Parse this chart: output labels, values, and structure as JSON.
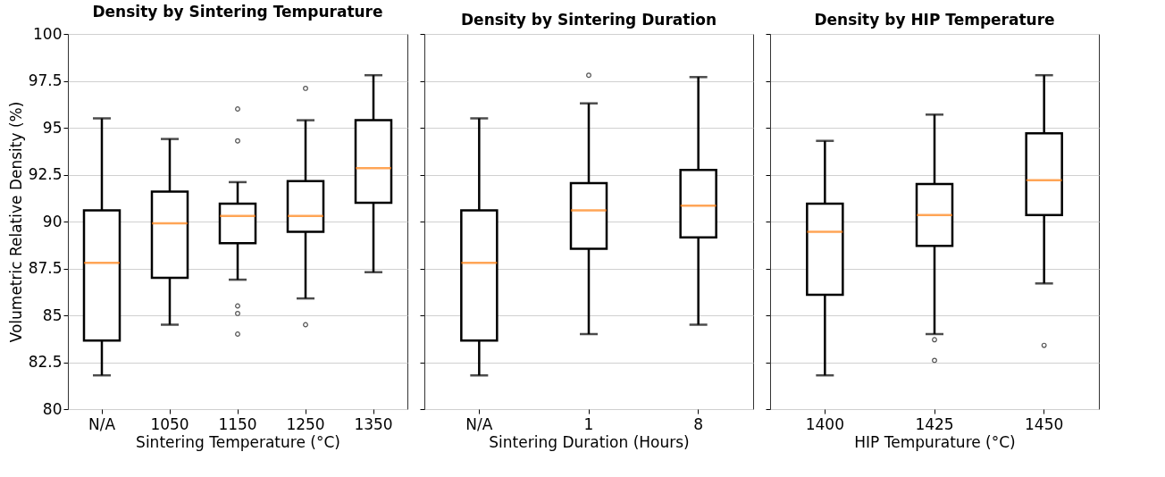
{
  "chart_data": [
    {
      "type": "box",
      "title": "Density by Sintering Tempurature",
      "xlabel": "Sintering Temperature (°C)",
      "ylabel": "Volumetric Relative Density (%)",
      "categories": [
        "N/A",
        "1050",
        "1150",
        "1250",
        "1350"
      ],
      "boxes": [
        {
          "low": 81.8,
          "q1": 83.65,
          "median": 87.8,
          "q3": 90.6,
          "high": 95.5
        },
        {
          "low": 84.5,
          "q1": 87.0,
          "median": 89.9,
          "q3": 91.6,
          "high": 94.4
        },
        {
          "low": 86.9,
          "q1": 88.85,
          "median": 90.3,
          "q3": 90.95,
          "high": 92.1,
          "outliers": [
            96.0,
            94.3,
            85.5,
            85.1,
            84.0
          ]
        },
        {
          "low": 85.9,
          "q1": 89.45,
          "median": 90.3,
          "q3": 92.15,
          "high": 95.4,
          "outliers": [
            97.1,
            84.5
          ]
        },
        {
          "low": 87.3,
          "q1": 91.0,
          "median": 92.85,
          "q3": 95.4,
          "high": 97.8
        }
      ],
      "ylim": [
        80,
        100
      ],
      "yticks": [
        80,
        82.5,
        85,
        87.5,
        90,
        92.5,
        95,
        97.5,
        100
      ],
      "grid": "y"
    },
    {
      "type": "box",
      "title": "Density by Sintering Duration",
      "xlabel": "Sintering Duration (Hours)",
      "categories": [
        "N/A",
        "1",
        "8"
      ],
      "boxes": [
        {
          "low": 81.8,
          "q1": 83.65,
          "median": 87.8,
          "q3": 90.6,
          "high": 95.5
        },
        {
          "low": 84.0,
          "q1": 88.55,
          "median": 90.6,
          "q3": 92.05,
          "high": 96.3,
          "outliers": [
            97.8
          ]
        },
        {
          "low": 84.5,
          "q1": 89.15,
          "median": 90.85,
          "q3": 92.75,
          "high": 97.7
        }
      ],
      "ylim": [
        80,
        100
      ],
      "yticks": [
        80,
        82.5,
        85,
        87.5,
        90,
        92.5,
        95,
        97.5,
        100
      ],
      "grid": "y",
      "tick_labels": "x"
    },
    {
      "type": "box",
      "title": "Density by HIP Temperature",
      "xlabel": "HIP Tempurature (°C)",
      "categories": [
        "1400",
        "1425",
        "1450"
      ],
      "boxes": [
        {
          "low": 81.8,
          "q1": 86.1,
          "median": 89.45,
          "q3": 90.95,
          "high": 94.3
        },
        {
          "low": 84.0,
          "q1": 88.7,
          "median": 90.35,
          "q3": 92.0,
          "high": 95.7,
          "outliers": [
            83.7,
            82.6
          ]
        },
        {
          "low": 86.7,
          "q1": 90.35,
          "median": 92.2,
          "q3": 94.7,
          "high": 97.8,
          "outliers": [
            83.4
          ]
        }
      ],
      "ylim": [
        80,
        100
      ],
      "yticks": [
        80,
        82.5,
        85,
        87.5,
        90,
        92.5,
        95,
        97.5,
        100
      ],
      "grid": "y",
      "tick_labels": "x"
    }
  ]
}
